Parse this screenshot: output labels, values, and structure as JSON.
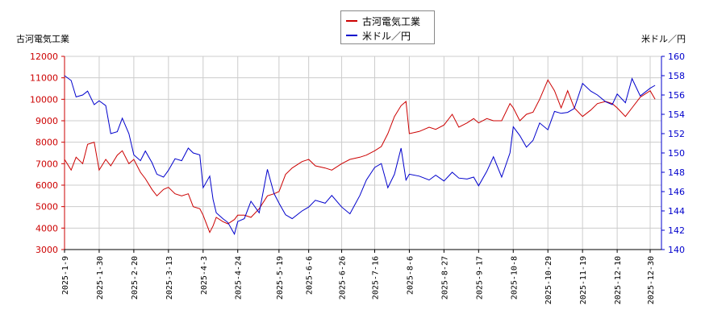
{
  "chart_data": {
    "type": "line",
    "left_axis_label": "古河電気工業",
    "right_axis_label": "米ドル／円",
    "legend_position": "top-center",
    "grid": true,
    "x_tick_labels": [
      "2025-1-9",
      "2025-1-30",
      "2025-2-20",
      "2025-3-13",
      "2025-4-3",
      "2025-4-24",
      "2025-5-19",
      "2025-6-6",
      "2025-6-26",
      "2025-7-16",
      "2025-8-6",
      "2025-8-27",
      "2025-9-17",
      "2025-10-8",
      "2025-10-29",
      "2025-11-19",
      "2025-12-10",
      "2025-12-30"
    ],
    "y_left": {
      "min": 3000,
      "max": 12000,
      "step": 1000,
      "tick_color": "#cc0000"
    },
    "y_right": {
      "min": 140,
      "max": 160,
      "step": 2,
      "tick_color": "#0000cc"
    },
    "series": [
      {
        "name": "古河電気工業",
        "axis": "left",
        "color": "#cc0000",
        "points": [
          [
            "2025-1-9",
            7200
          ],
          [
            "2025-1-13",
            6700
          ],
          [
            "2025-1-16",
            7300
          ],
          [
            "2025-1-20",
            7000
          ],
          [
            "2025-1-23",
            7900
          ],
          [
            "2025-1-27",
            8000
          ],
          [
            "2025-1-30",
            6700
          ],
          [
            "2025-2-3",
            7200
          ],
          [
            "2025-2-6",
            6900
          ],
          [
            "2025-2-10",
            7400
          ],
          [
            "2025-2-13",
            7600
          ],
          [
            "2025-2-17",
            7000
          ],
          [
            "2025-2-20",
            7200
          ],
          [
            "2025-2-24",
            6600
          ],
          [
            "2025-2-27",
            6300
          ],
          [
            "2025-3-3",
            5800
          ],
          [
            "2025-3-6",
            5500
          ],
          [
            "2025-3-10",
            5800
          ],
          [
            "2025-3-13",
            5900
          ],
          [
            "2025-3-17",
            5600
          ],
          [
            "2025-3-21",
            5500
          ],
          [
            "2025-3-25",
            5600
          ],
          [
            "2025-3-28",
            5000
          ],
          [
            "2025-4-1",
            4900
          ],
          [
            "2025-4-3",
            4600
          ],
          [
            "2025-4-7",
            3800
          ],
          [
            "2025-4-9",
            4100
          ],
          [
            "2025-4-11",
            4500
          ],
          [
            "2025-4-15",
            4300
          ],
          [
            "2025-4-18",
            4200
          ],
          [
            "2025-4-22",
            4400
          ],
          [
            "2025-4-24",
            4600
          ],
          [
            "2025-4-28",
            4600
          ],
          [
            "2025-5-2",
            4500
          ],
          [
            "2025-5-7",
            4900
          ],
          [
            "2025-5-12",
            5500
          ],
          [
            "2025-5-16",
            5600
          ],
          [
            "2025-5-19",
            5700
          ],
          [
            "2025-5-23",
            6500
          ],
          [
            "2025-5-27",
            6800
          ],
          [
            "2025-6-2",
            7100
          ],
          [
            "2025-6-6",
            7200
          ],
          [
            "2025-6-10",
            6900
          ],
          [
            "2025-6-16",
            6800
          ],
          [
            "2025-6-20",
            6700
          ],
          [
            "2025-6-26",
            7000
          ],
          [
            "2025-7-1",
            7200
          ],
          [
            "2025-7-7",
            7300
          ],
          [
            "2025-7-11",
            7400
          ],
          [
            "2025-7-16",
            7600
          ],
          [
            "2025-7-20",
            7800
          ],
          [
            "2025-7-24",
            8400
          ],
          [
            "2025-7-28",
            9200
          ],
          [
            "2025-8-1",
            9700
          ],
          [
            "2025-8-4",
            9900
          ],
          [
            "2025-8-6",
            8400
          ],
          [
            "2025-8-12",
            8500
          ],
          [
            "2025-8-18",
            8700
          ],
          [
            "2025-8-22",
            8600
          ],
          [
            "2025-8-27",
            8800
          ],
          [
            "2025-9-1",
            9300
          ],
          [
            "2025-9-5",
            8700
          ],
          [
            "2025-9-10",
            8900
          ],
          [
            "2025-9-14",
            9100
          ],
          [
            "2025-9-17",
            8900
          ],
          [
            "2025-9-22",
            9100
          ],
          [
            "2025-9-26",
            9000
          ],
          [
            "2025-10-1",
            9000
          ],
          [
            "2025-10-6",
            9800
          ],
          [
            "2025-10-8",
            9600
          ],
          [
            "2025-10-12",
            9000
          ],
          [
            "2025-10-16",
            9300
          ],
          [
            "2025-10-20",
            9400
          ],
          [
            "2025-10-24",
            10000
          ],
          [
            "2025-10-29",
            10900
          ],
          [
            "2025-11-2",
            10400
          ],
          [
            "2025-11-6",
            9600
          ],
          [
            "2025-11-10",
            10400
          ],
          [
            "2025-11-14",
            9600
          ],
          [
            "2025-11-19",
            9200
          ],
          [
            "2025-11-24",
            9500
          ],
          [
            "2025-11-28",
            9800
          ],
          [
            "2025-12-3",
            9900
          ],
          [
            "2025-12-7",
            9800
          ],
          [
            "2025-12-10",
            9600
          ],
          [
            "2025-12-15",
            9200
          ],
          [
            "2025-12-19",
            9600
          ],
          [
            "2025-12-24",
            10100
          ],
          [
            "2025-12-30",
            10400
          ],
          [
            "2026-1-2",
            10000
          ]
        ]
      },
      {
        "name": "米ドル／円",
        "axis": "right",
        "color": "#0000cc",
        "points": [
          [
            "2025-1-9",
            158.0
          ],
          [
            "2025-1-13",
            157.5
          ],
          [
            "2025-1-16",
            155.8
          ],
          [
            "2025-1-20",
            156.0
          ],
          [
            "2025-1-23",
            156.4
          ],
          [
            "2025-1-27",
            155.0
          ],
          [
            "2025-1-30",
            155.4
          ],
          [
            "2025-2-3",
            154.9
          ],
          [
            "2025-2-6",
            152.0
          ],
          [
            "2025-2-10",
            152.2
          ],
          [
            "2025-2-13",
            153.6
          ],
          [
            "2025-2-17",
            152.0
          ],
          [
            "2025-2-20",
            149.8
          ],
          [
            "2025-2-24",
            149.2
          ],
          [
            "2025-2-27",
            150.2
          ],
          [
            "2025-3-3",
            149.0
          ],
          [
            "2025-3-6",
            147.8
          ],
          [
            "2025-3-10",
            147.5
          ],
          [
            "2025-3-13",
            148.2
          ],
          [
            "2025-3-17",
            149.4
          ],
          [
            "2025-3-21",
            149.2
          ],
          [
            "2025-3-25",
            150.5
          ],
          [
            "2025-3-28",
            150.0
          ],
          [
            "2025-4-1",
            149.8
          ],
          [
            "2025-4-3",
            146.4
          ],
          [
            "2025-4-7",
            147.6
          ],
          [
            "2025-4-9",
            145.2
          ],
          [
            "2025-4-11",
            143.8
          ],
          [
            "2025-4-15",
            143.2
          ],
          [
            "2025-4-18",
            142.8
          ],
          [
            "2025-4-22",
            141.6
          ],
          [
            "2025-4-24",
            142.9
          ],
          [
            "2025-4-28",
            143.2
          ],
          [
            "2025-5-2",
            145.0
          ],
          [
            "2025-5-7",
            143.8
          ],
          [
            "2025-5-12",
            148.3
          ],
          [
            "2025-5-16",
            145.8
          ],
          [
            "2025-5-19",
            144.8
          ],
          [
            "2025-5-23",
            143.6
          ],
          [
            "2025-5-27",
            143.2
          ],
          [
            "2025-6-2",
            144.0
          ],
          [
            "2025-6-6",
            144.4
          ],
          [
            "2025-6-10",
            145.1
          ],
          [
            "2025-6-16",
            144.8
          ],
          [
            "2025-6-20",
            145.6
          ],
          [
            "2025-6-26",
            144.4
          ],
          [
            "2025-7-1",
            143.7
          ],
          [
            "2025-7-7",
            145.6
          ],
          [
            "2025-7-11",
            147.2
          ],
          [
            "2025-7-16",
            148.5
          ],
          [
            "2025-7-20",
            148.9
          ],
          [
            "2025-7-24",
            146.4
          ],
          [
            "2025-7-28",
            147.8
          ],
          [
            "2025-8-1",
            150.5
          ],
          [
            "2025-8-4",
            147.2
          ],
          [
            "2025-8-6",
            147.8
          ],
          [
            "2025-8-12",
            147.6
          ],
          [
            "2025-8-18",
            147.2
          ],
          [
            "2025-8-22",
            147.7
          ],
          [
            "2025-8-27",
            147.1
          ],
          [
            "2025-9-1",
            148.0
          ],
          [
            "2025-9-5",
            147.4
          ],
          [
            "2025-9-10",
            147.3
          ],
          [
            "2025-9-14",
            147.5
          ],
          [
            "2025-9-17",
            146.6
          ],
          [
            "2025-9-22",
            148.1
          ],
          [
            "2025-9-26",
            149.6
          ],
          [
            "2025-10-1",
            147.5
          ],
          [
            "2025-10-6",
            150.0
          ],
          [
            "2025-10-8",
            152.7
          ],
          [
            "2025-10-12",
            151.8
          ],
          [
            "2025-10-16",
            150.6
          ],
          [
            "2025-10-20",
            151.3
          ],
          [
            "2025-10-24",
            153.1
          ],
          [
            "2025-10-29",
            152.4
          ],
          [
            "2025-11-2",
            154.3
          ],
          [
            "2025-11-6",
            154.1
          ],
          [
            "2025-11-10",
            154.2
          ],
          [
            "2025-11-14",
            154.6
          ],
          [
            "2025-11-19",
            157.2
          ],
          [
            "2025-11-24",
            156.4
          ],
          [
            "2025-11-28",
            156.0
          ],
          [
            "2025-12-3",
            155.3
          ],
          [
            "2025-12-7",
            155.0
          ],
          [
            "2025-12-10",
            156.1
          ],
          [
            "2025-12-15",
            155.2
          ],
          [
            "2025-12-19",
            157.7
          ],
          [
            "2025-12-24",
            155.9
          ],
          [
            "2025-12-30",
            156.7
          ],
          [
            "2026-1-2",
            157.0
          ]
        ]
      }
    ]
  }
}
